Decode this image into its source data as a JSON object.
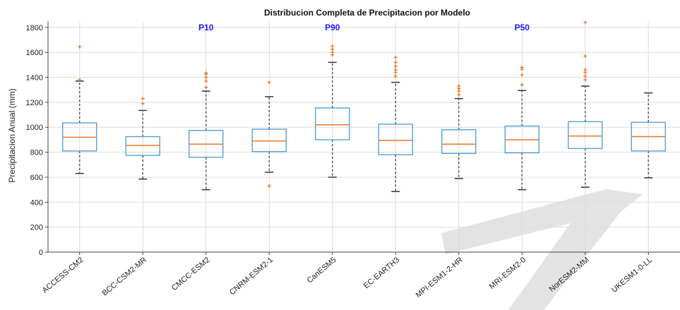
{
  "chart_data": {
    "type": "boxplot",
    "title": "Distribucion Completa de Precipitacion por Modelo",
    "xlabel": "",
    "ylabel": "Precipitacion Anual (mm)",
    "ylim": [
      0,
      1850
    ],
    "yticks": [
      0,
      200,
      400,
      600,
      800,
      1000,
      1200,
      1400,
      1600,
      1800
    ],
    "grid": true,
    "categories": [
      "ACCESS-CM2",
      "BCC-CSM2-MR",
      "CMCC-ESM2",
      "CNRM-ESM2-1",
      "CanESM5",
      "EC-EARTH3",
      "MPI-ESM1-2-HR",
      "MRI-ESM2-0",
      "NorESM2-MM",
      "UKESM1-0-LL"
    ],
    "boxes": [
      {
        "min": 630,
        "q1": 810,
        "median": 920,
        "q3": 1035,
        "max": 1370,
        "outliers": [
          1380,
          1645
        ]
      },
      {
        "min": 585,
        "q1": 775,
        "median": 855,
        "q3": 925,
        "max": 1135,
        "outliers": [
          1190,
          1230
        ]
      },
      {
        "min": 500,
        "q1": 760,
        "median": 865,
        "q3": 975,
        "max": 1290,
        "outliers": [
          1320,
          1370,
          1400,
          1425,
          1435
        ]
      },
      {
        "min": 640,
        "q1": 805,
        "median": 890,
        "q3": 985,
        "max": 1245,
        "outliers": [
          530,
          1360
        ]
      },
      {
        "min": 600,
        "q1": 900,
        "median": 1020,
        "q3": 1155,
        "max": 1520,
        "outliers": [
          1580,
          1600,
          1625,
          1650
        ]
      },
      {
        "min": 485,
        "q1": 780,
        "median": 895,
        "q3": 1025,
        "max": 1360,
        "outliers": [
          1410,
          1440,
          1460,
          1490,
          1520,
          1560
        ]
      },
      {
        "min": 590,
        "q1": 790,
        "median": 865,
        "q3": 980,
        "max": 1230,
        "outliers": [
          1260,
          1290,
          1310,
          1330
        ]
      },
      {
        "min": 500,
        "q1": 795,
        "median": 900,
        "q3": 1010,
        "max": 1295,
        "outliers": [
          1340,
          1420,
          1465,
          1480
        ]
      },
      {
        "min": 520,
        "q1": 830,
        "median": 930,
        "q3": 1045,
        "max": 1330,
        "outliers": [
          1380,
          1410,
          1440,
          1460,
          1570,
          1840
        ]
      },
      {
        "min": 595,
        "q1": 810,
        "median": 925,
        "q3": 1040,
        "max": 1275,
        "outliers": []
      }
    ],
    "annotations": [
      {
        "text": "P10",
        "category": "CMCC-ESM2",
        "y": 1800
      },
      {
        "text": "P90",
        "category": "CanESM5",
        "y": 1800
      },
      {
        "text": "P50",
        "category": "MRI-ESM2-0",
        "y": 1800
      }
    ],
    "colors": {
      "box": "#4a9ad6",
      "median": "#e8762d",
      "whisker": "#555555",
      "outlier": "#e8762d",
      "annotation": "#1a1aff",
      "grid": "#dcdcdc",
      "watermark": "#cfcfcf"
    }
  }
}
